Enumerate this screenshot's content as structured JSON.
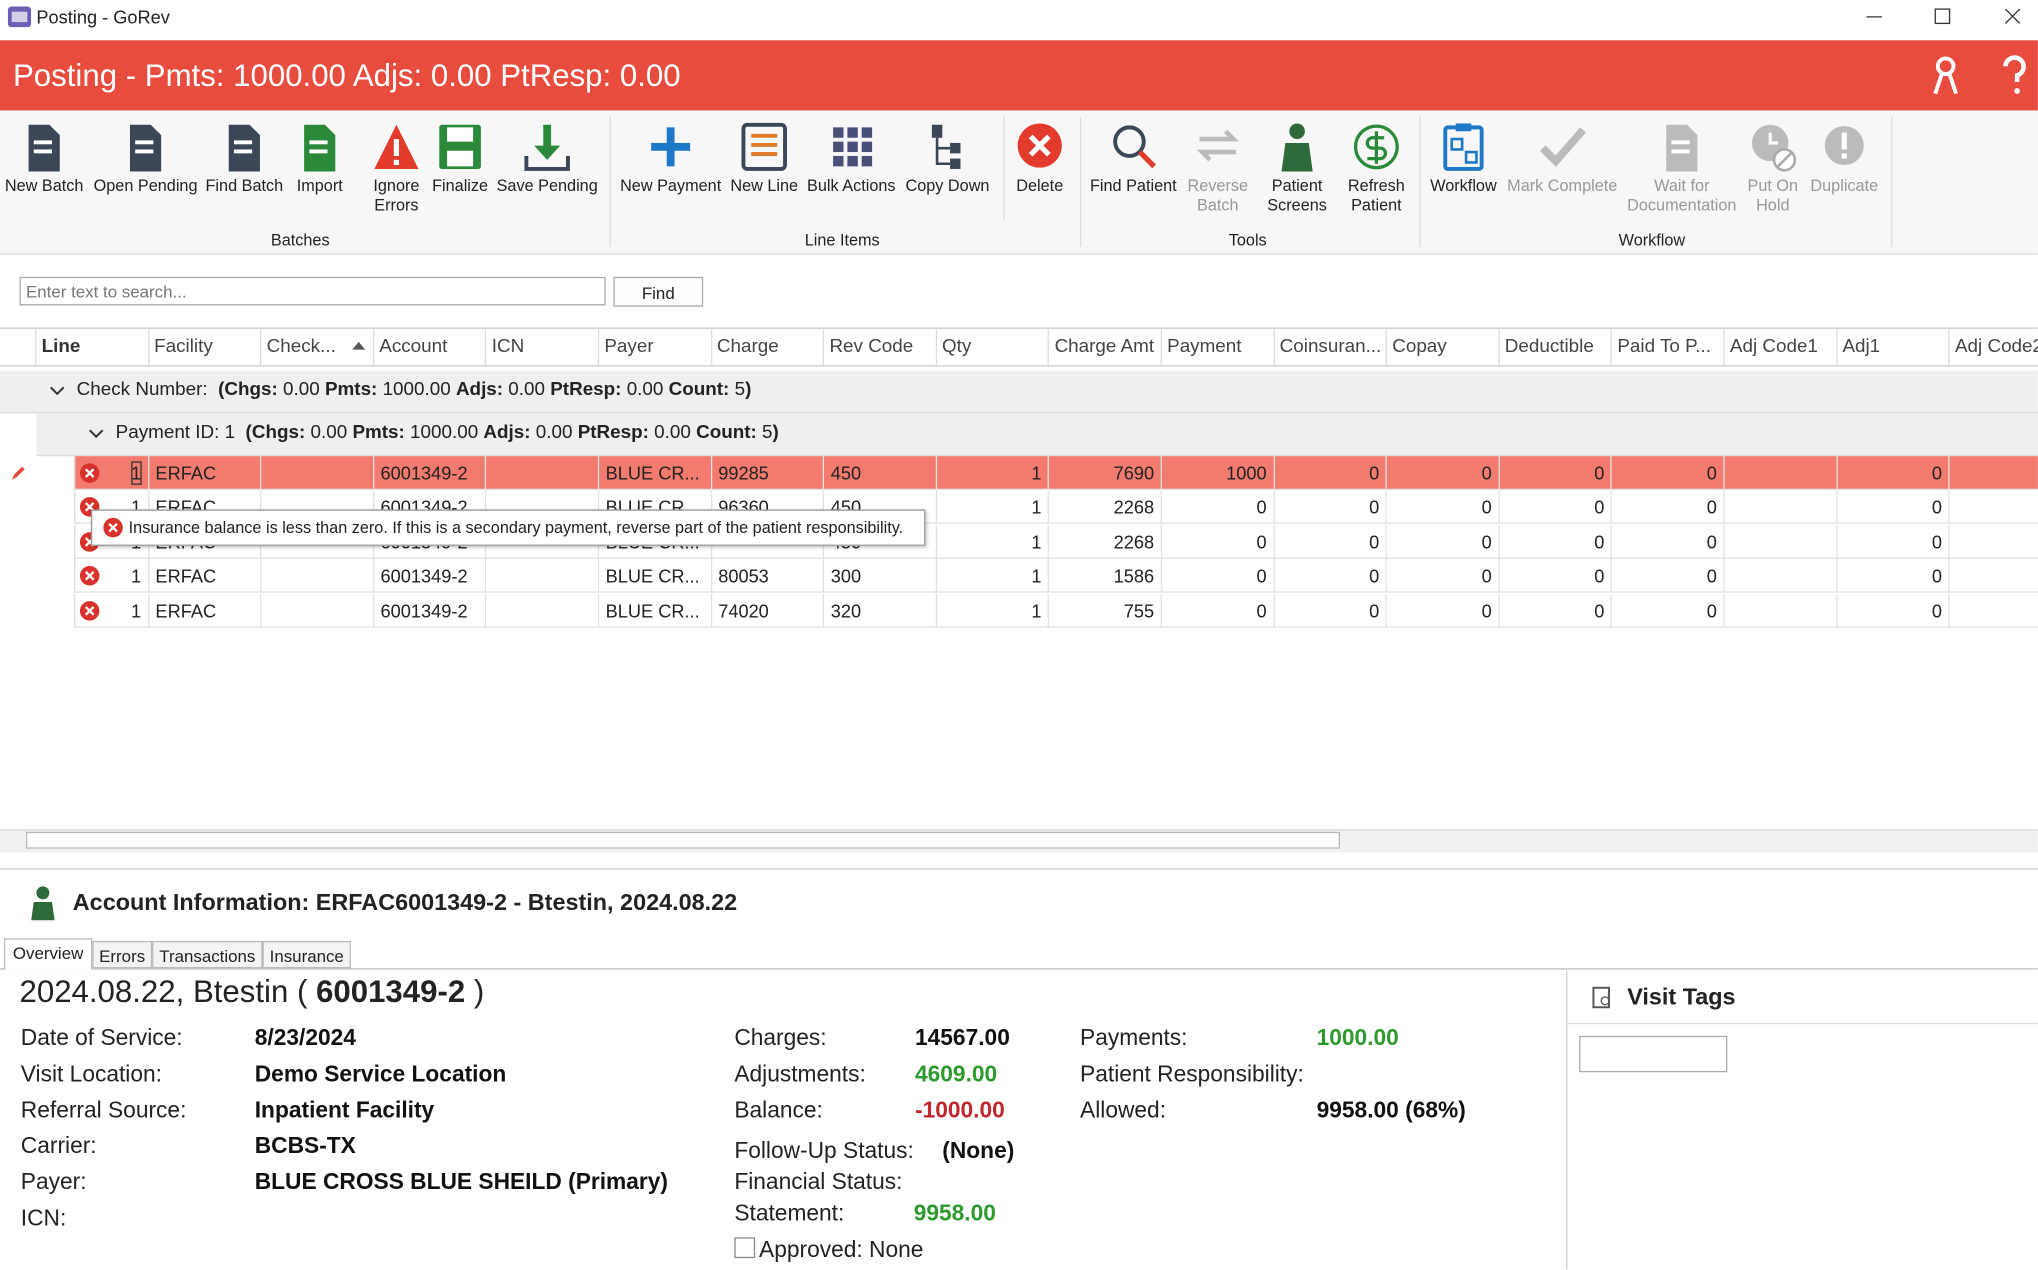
{
  "window": {
    "title": "Posting - GoRev"
  },
  "header": {
    "title": "Posting - Pmts: 1000.00 Adjs: 0.00 PtResp: 0.00"
  },
  "ribbon": {
    "groups": [
      {
        "label": "Batches",
        "buttons": [
          {
            "label": "New Batch"
          },
          {
            "label": "Open Pending"
          },
          {
            "label": "Find Batch"
          },
          {
            "label": "Import"
          },
          {
            "label": "Ignore Errors"
          },
          {
            "label": "Finalize"
          },
          {
            "label": "Save Pending"
          }
        ]
      },
      {
        "label": "Line Items",
        "buttons": [
          {
            "label": "New Payment"
          },
          {
            "label": "New Line"
          },
          {
            "label": "Bulk Actions"
          },
          {
            "label": "Copy Down"
          },
          {
            "label": "Delete"
          }
        ]
      },
      {
        "label": "Tools",
        "buttons": [
          {
            "label": "Find Patient"
          },
          {
            "label": "Reverse Batch",
            "disabled": true
          },
          {
            "label": "Patient Screens"
          },
          {
            "label": "Refresh Patient"
          }
        ]
      },
      {
        "label": "Workflow",
        "buttons": [
          {
            "label": "Workflow"
          },
          {
            "label": "Mark Complete",
            "disabled": true
          },
          {
            "label": "Wait for Documentation",
            "disabled": true
          },
          {
            "label": "Put On Hold",
            "disabled": true
          },
          {
            "label": "Duplicate",
            "disabled": true
          }
        ]
      }
    ]
  },
  "search": {
    "placeholder": "Enter text to search...",
    "button": "Find"
  },
  "grid": {
    "columns": [
      "Line",
      "Facility",
      "Check...",
      "Account",
      "ICN",
      "Payer",
      "Charge",
      "Rev Code",
      "Qty",
      "Charge Amt",
      "Payment",
      "Coinsuran...",
      "Copay",
      "Deductible",
      "Paid To P...",
      "Adj Code1",
      "Adj1",
      "Adj Code2"
    ],
    "groups": [
      {
        "label": "Check Number:",
        "open": "(",
        "close": ")",
        "summary": [
          {
            "label": "Chgs:",
            "value": "0.00"
          },
          {
            "label": "Pmts:",
            "value": "1000.00"
          },
          {
            "label": "Adjs:",
            "value": "0.00"
          },
          {
            "label": "PtResp:",
            "value": "0.00"
          },
          {
            "label": "Count:",
            "value": "5"
          }
        ]
      },
      {
        "label": "Payment ID: 1",
        "open": "(",
        "close": ")",
        "summary": [
          {
            "label": "Chgs:",
            "value": "0.00"
          },
          {
            "label": "Pmts:",
            "value": "1000.00"
          },
          {
            "label": "Adjs:",
            "value": "0.00"
          },
          {
            "label": "PtResp:",
            "value": "0.00"
          },
          {
            "label": "Count:",
            "value": "5"
          }
        ]
      }
    ],
    "rows": [
      [
        1,
        "ERFAC",
        null,
        "6001349-2",
        null,
        "BLUE CR...",
        99285,
        450,
        1,
        7690,
        1000,
        0,
        0,
        0,
        0,
        null,
        0,
        null
      ],
      [
        1,
        "ERFAC",
        null,
        "6001349-2",
        null,
        "BLUE CR...",
        96360,
        450,
        1,
        2268,
        0,
        0,
        0,
        0,
        0,
        null,
        0,
        null
      ],
      [
        1,
        "ERFAC",
        null,
        "6001349-2",
        null,
        "BLUE CR...",
        null,
        450,
        1,
        2268,
        0,
        0,
        0,
        0,
        0,
        null,
        0,
        null
      ],
      [
        1,
        "ERFAC",
        null,
        "6001349-2",
        null,
        "BLUE CR...",
        80053,
        300,
        1,
        1586,
        0,
        0,
        0,
        0,
        0,
        null,
        0,
        null
      ],
      [
        1,
        "ERFAC",
        null,
        "6001349-2",
        null,
        "BLUE CR...",
        74020,
        320,
        1,
        755,
        0,
        0,
        0,
        0,
        0,
        null,
        0,
        null
      ]
    ],
    "selected_row": 0
  },
  "tooltip": "Insurance balance is less than zero. If this is a secondary payment, reverse part of the patient responsibility.",
  "account": {
    "title": "Account Information: ERFAC6001349-2 - Btestin, 2024.08.22",
    "tabs": [
      "Overview",
      "Errors",
      "Transactions",
      "Insurance"
    ],
    "active_tab": 0,
    "heading": {
      "prefix": "2024.08.22, Btestin (",
      "account": "6001349-2",
      "suffix": ")"
    },
    "left": [
      {
        "label": "Date of Service:",
        "value": "8/23/2024"
      },
      {
        "label": "Visit Location:",
        "value": "Demo Service Location"
      },
      {
        "label": "Referral Source:",
        "value": "Inpatient Facility"
      },
      {
        "label": "Carrier:",
        "value": "BCBS-TX"
      },
      {
        "label": "Payer:",
        "value": "BLUE CROSS BLUE SHEILD (Primary)"
      },
      {
        "label": "ICN:",
        "value": null
      }
    ],
    "middle": [
      {
        "label": "Charges:",
        "value": "14567.00",
        "color": "#111111"
      },
      {
        "label": "Adjustments:",
        "value": "4609.00",
        "color": "#2e9a2e"
      },
      {
        "label": "Balance:",
        "value": "-1000.00",
        "color": "#c0282d"
      }
    ],
    "status": [
      {
        "label": "Follow-Up Status:",
        "value": "(None)",
        "color": "#111111"
      },
      {
        "label": "Financial Status:",
        "value": null
      },
      {
        "label": "Statement:",
        "value": "9958.00",
        "color": "#2e9a2e"
      }
    ],
    "approved": "Approved: None",
    "right": [
      {
        "label": "Payments:",
        "value": "1000.00",
        "color": "#2e9a2e"
      },
      {
        "label": "Patient Responsibility:",
        "value": null
      },
      {
        "label": "Allowed:",
        "value": "9958.00 (68%)",
        "color": "#111111"
      }
    ],
    "visit_tags": "Visit Tags"
  }
}
